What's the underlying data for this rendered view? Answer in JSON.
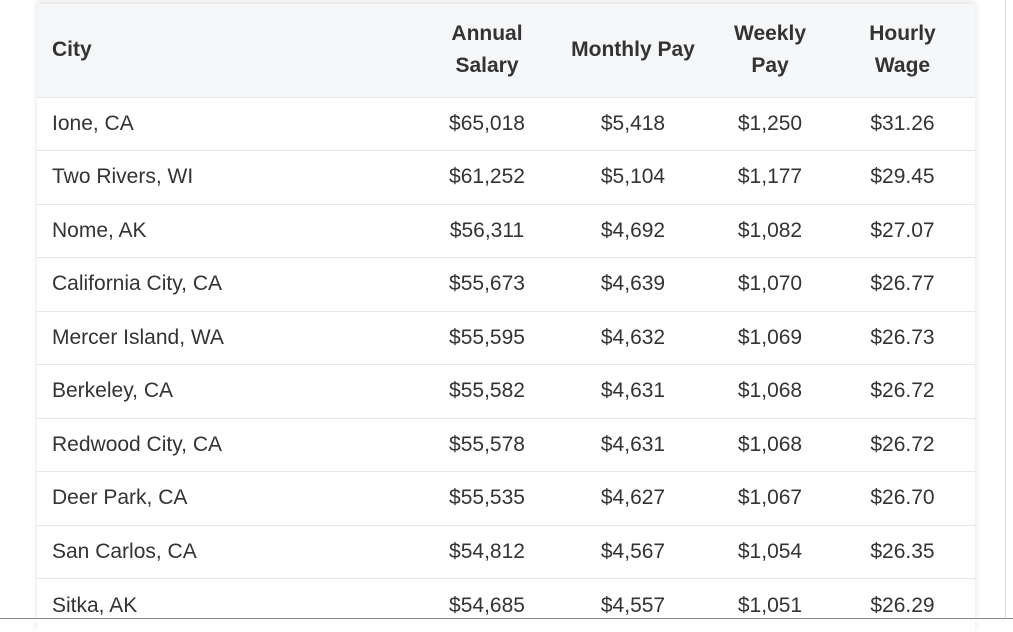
{
  "table": {
    "header": [
      "City",
      "Annual Salary",
      "Monthly Pay",
      "Weekly Pay",
      "Hourly Wage"
    ],
    "rows": [
      [
        "Ione, CA",
        "$65,018",
        "$5,418",
        "$1,250",
        "$31.26"
      ],
      [
        "Two Rivers, WI",
        "$61,252",
        "$5,104",
        "$1,177",
        "$29.45"
      ],
      [
        "Nome, AK",
        "$56,311",
        "$4,692",
        "$1,082",
        "$27.07"
      ],
      [
        "California City, CA",
        "$55,673",
        "$4,639",
        "$1,070",
        "$26.77"
      ],
      [
        "Mercer Island, WA",
        "$55,595",
        "$4,632",
        "$1,069",
        "$26.73"
      ],
      [
        "Berkeley, CA",
        "$55,582",
        "$4,631",
        "$1,068",
        "$26.72"
      ],
      [
        "Redwood City, CA",
        "$55,578",
        "$4,631",
        "$1,068",
        "$26.72"
      ],
      [
        "Deer Park, CA",
        "$55,535",
        "$4,627",
        "$1,067",
        "$26.70"
      ],
      [
        "San Carlos, CA",
        "$54,812",
        "$4,567",
        "$1,054",
        "$26.35"
      ],
      [
        "Sitka, AK",
        "$54,685",
        "$4,557",
        "$1,051",
        "$26.29"
      ]
    ]
  }
}
